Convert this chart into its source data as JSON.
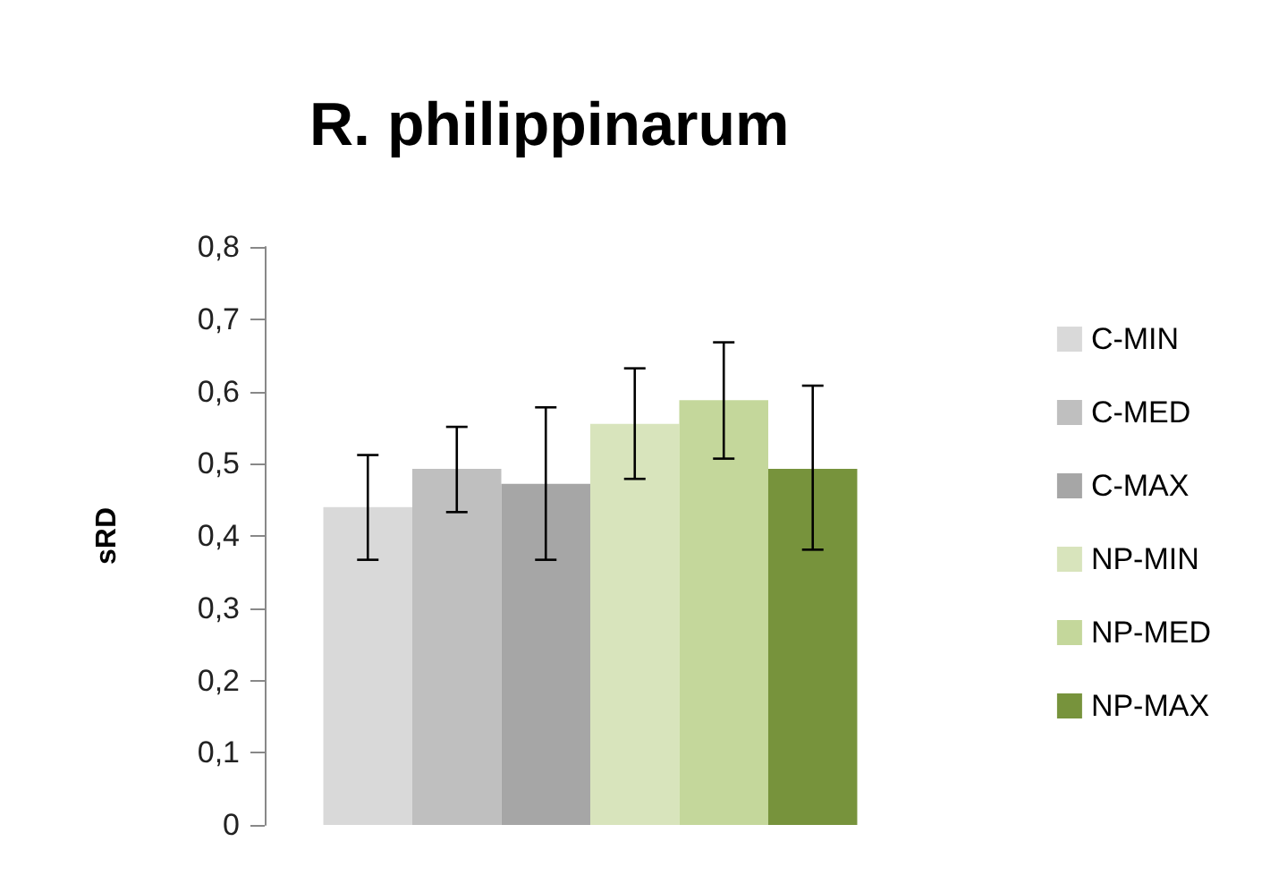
{
  "chart_data": {
    "type": "bar",
    "title": "R. philippinarum",
    "ylabel": "sRD",
    "categories": [
      null
    ],
    "series": [
      {
        "name": "C-MIN",
        "color": "#d9d9d9",
        "values": [
          0.44
        ],
        "errors": [
          [
            0.367,
            0.512
          ]
        ]
      },
      {
        "name": "C-MED",
        "color": "#bfbfbf",
        "values": [
          0.493
        ],
        "errors": [
          [
            0.433,
            0.551
          ]
        ]
      },
      {
        "name": "C-MAX",
        "color": "#a6a6a6",
        "values": [
          0.472
        ],
        "errors": [
          [
            0.367,
            0.578
          ]
        ]
      },
      {
        "name": "NP-MIN",
        "color": "#d8e4bc",
        "values": [
          0.555
        ],
        "errors": [
          [
            0.479,
            0.632
          ]
        ]
      },
      {
        "name": "NP-MED",
        "color": "#c4d79b",
        "values": [
          0.588
        ],
        "errors": [
          [
            0.507,
            0.668
          ]
        ]
      },
      {
        "name": "NP-MAX",
        "color": "#77933c",
        "values": [
          0.493
        ],
        "errors": [
          [
            0.381,
            0.608
          ]
        ]
      }
    ],
    "ylim": [
      0,
      0.8
    ],
    "yticks": [
      0,
      {
        "value": 0.1,
        "label": "0,1"
      },
      {
        "value": 0.2,
        "label": "0,2"
      },
      {
        "value": 0.3,
        "label": "0,3"
      },
      {
        "value": 0.4,
        "label": "0,4"
      },
      {
        "value": 0.5,
        "label": "0,5"
      },
      {
        "value": 0.6,
        "label": "0,6"
      },
      {
        "value": 0.7,
        "label": "0,7"
      },
      {
        "value": 0.8,
        "label": "0,8"
      }
    ],
    "grid": false,
    "legend": "right"
  }
}
